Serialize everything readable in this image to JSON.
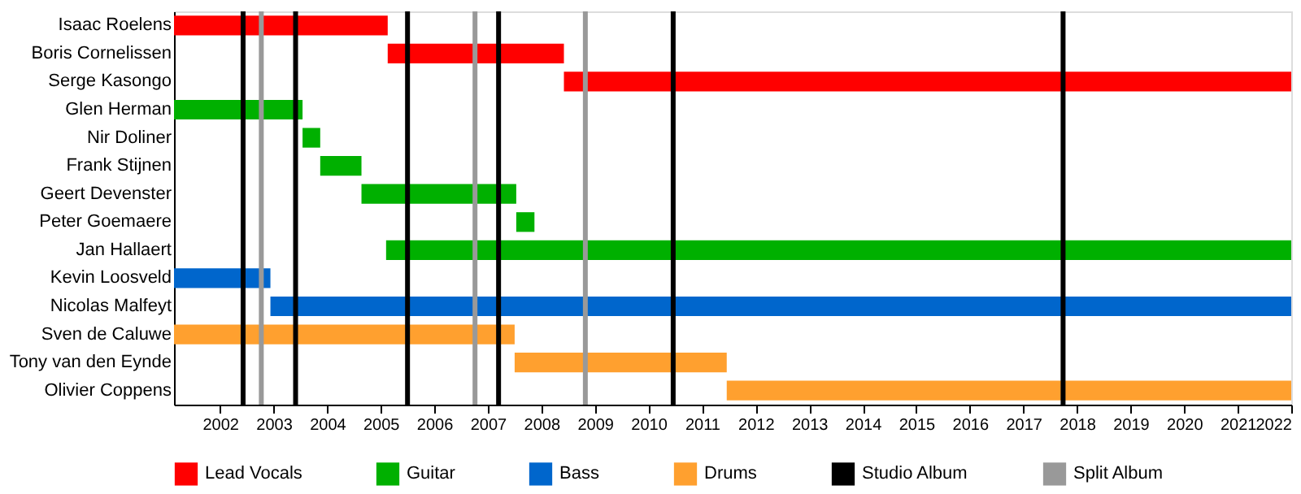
{
  "chart_data": {
    "type": "bar",
    "orientation": "horizontal",
    "categories": [
      "Isaac Roelens",
      "Boris Cornelissen",
      "Serge Kasongo",
      "Glen Herman",
      "Nir Doliner",
      "Frank Stijnen",
      "Geert Devenster",
      "Peter Goemaere",
      "Jan Hallaert",
      "Kevin Loosveld",
      "Nicolas Malfeyt",
      "Sven de Caluwe",
      "Tony van den Eynde",
      "Olivier Coppens"
    ],
    "series": [
      {
        "name": "Lead Vocals",
        "color": "#ff0000",
        "base": [
          2001.14,
          2005.13,
          2008.42,
          null,
          null,
          null,
          null,
          null,
          null,
          null,
          null,
          null,
          null,
          null
        ],
        "values": [
          3.99,
          3.29,
          13.58,
          null,
          null,
          null,
          null,
          null,
          null,
          null,
          null,
          null,
          null,
          null
        ]
      },
      {
        "name": "Guitar",
        "color": "#00b000",
        "base": [
          null,
          null,
          null,
          2001.14,
          2003.54,
          2003.87,
          2004.64,
          2007.53,
          2005.1,
          null,
          null,
          null,
          null,
          null
        ],
        "values": [
          null,
          null,
          null,
          2.4,
          0.33,
          0.77,
          2.89,
          0.34,
          16.9,
          null,
          null,
          null,
          null,
          null
        ]
      },
      {
        "name": "Bass",
        "color": "#0066cc",
        "base": [
          null,
          null,
          null,
          null,
          null,
          null,
          null,
          null,
          null,
          2001.14,
          2002.94,
          null,
          null,
          null
        ],
        "values": [
          null,
          null,
          null,
          null,
          null,
          null,
          null,
          null,
          null,
          1.8,
          19.06,
          null,
          null,
          null
        ]
      },
      {
        "name": "Drums",
        "color": "#ffa02f",
        "base": [
          null,
          null,
          null,
          null,
          null,
          null,
          null,
          null,
          null,
          null,
          null,
          2001.14,
          2007.5,
          2011.46
        ],
        "values": [
          null,
          null,
          null,
          null,
          null,
          null,
          null,
          null,
          null,
          null,
          null,
          6.36,
          3.96,
          10.54
        ]
      }
    ],
    "ref_lines": [
      {
        "axis": "x",
        "value": 2002.43,
        "label": "Studio Album",
        "color": "#000000"
      },
      {
        "axis": "x",
        "value": 2003.41,
        "color": "#000000"
      },
      {
        "axis": "x",
        "value": 2005.5,
        "color": "#000000"
      },
      {
        "axis": "x",
        "value": 2007.2,
        "color": "#000000"
      },
      {
        "axis": "x",
        "value": 2010.46,
        "color": "#000000"
      },
      {
        "axis": "x",
        "value": 2017.74,
        "color": "#000000"
      },
      {
        "axis": "x",
        "value": 2002.77,
        "label": "Split Album",
        "color": "#999999"
      },
      {
        "axis": "x",
        "value": 2006.76,
        "color": "#999999"
      },
      {
        "axis": "x",
        "value": 2008.82,
        "color": "#999999"
      }
    ],
    "xlim": [
      2001.14,
      2022
    ],
    "xticks": [
      2002,
      2003,
      2004,
      2005,
      2006,
      2007,
      2008,
      2009,
      2010,
      2011,
      2012,
      2013,
      2014,
      2015,
      2016,
      2017,
      2018,
      2019,
      2020,
      2021,
      2022
    ],
    "grid": false,
    "legend": "bottom"
  }
}
